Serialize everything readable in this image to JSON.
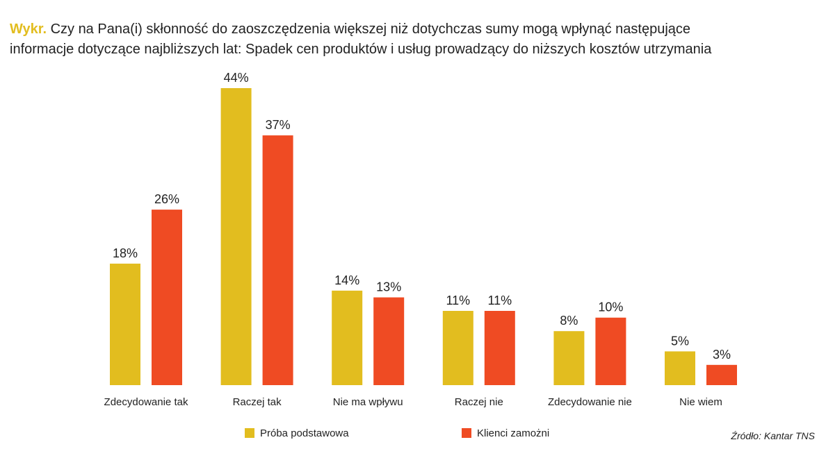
{
  "title": {
    "prefix": "Wykr.",
    "line1": "Czy na Pana(i) skłonność do zaoszczędzenia większej niż dotychczas sumy mogą wpłynąć następujące",
    "line2": "informacje dotyczące najbliższych lat: Spadek cen produktów i usług prowadzący do niższych kosztów utrzymania"
  },
  "source": "Źródło: Kantar TNS",
  "colors": {
    "series1": "#e2bd1f",
    "series2": "#ef4b23"
  },
  "chart_data": {
    "type": "bar",
    "categories": [
      "Zdecydowanie tak",
      "Raczej tak",
      "Nie ma wpływu",
      "Raczej nie",
      "Zdecydowanie nie",
      "Nie wiem"
    ],
    "series": [
      {
        "name": "Próba podstawowa",
        "values": [
          18,
          44,
          14,
          11,
          8,
          5
        ],
        "labels": [
          "18%",
          "44%",
          "14%",
          "11%",
          "8%",
          "5%"
        ]
      },
      {
        "name": "Klienci zamożni",
        "values": [
          26,
          37,
          13,
          11,
          10,
          3
        ],
        "labels": [
          "26%",
          "37%",
          "13%",
          "11%",
          "10%",
          "3%"
        ]
      }
    ],
    "ylim": [
      0,
      44
    ],
    "grid": false,
    "legend": "bottom"
  }
}
